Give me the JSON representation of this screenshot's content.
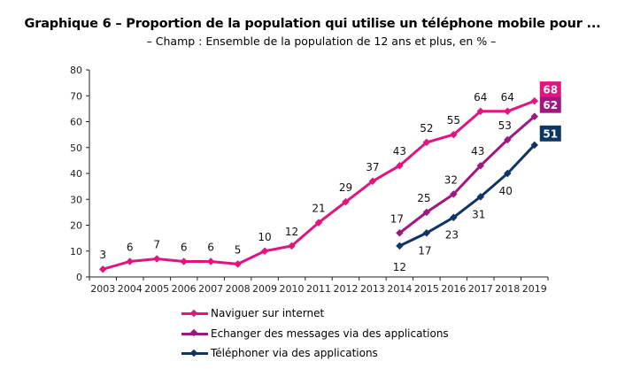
{
  "chart_data": {
    "type": "line",
    "title": "Graphique 6 – Proportion de la population qui utilise un téléphone mobile pour ...",
    "subtitle": "– Champ : Ensemble de la population de 12 ans et plus, en % –",
    "xlabel": "",
    "ylabel": "",
    "x": [
      2003,
      2004,
      2005,
      2006,
      2007,
      2008,
      2009,
      2010,
      2011,
      2012,
      2013,
      2014,
      2015,
      2016,
      2017,
      2018,
      2019
    ],
    "ylim": [
      0,
      80
    ],
    "yticks": [
      0,
      10,
      20,
      30,
      40,
      50,
      60,
      70,
      80
    ],
    "grid": false,
    "legend_position": "bottom",
    "series": [
      {
        "name": "Naviguer sur internet",
        "color": "#e0157f",
        "values": [
          3,
          6,
          7,
          6,
          6,
          5,
          10,
          12,
          21,
          29,
          37,
          43,
          52,
          55,
          64,
          64,
          68
        ],
        "label_position": "above",
        "end_label": "68"
      },
      {
        "name": "Echanger des messages via des applications",
        "color": "#a0177f",
        "values": [
          null,
          null,
          null,
          null,
          null,
          null,
          null,
          null,
          null,
          null,
          null,
          17,
          25,
          32,
          43,
          53,
          62
        ],
        "label_position": "above-left",
        "end_label": "62"
      },
      {
        "name": "Téléphoner via des applications",
        "color": "#0f3565",
        "values": [
          null,
          null,
          null,
          null,
          null,
          null,
          null,
          null,
          null,
          null,
          null,
          12,
          17,
          23,
          31,
          40,
          51
        ],
        "label_position": "below",
        "end_label": "51"
      }
    ]
  }
}
